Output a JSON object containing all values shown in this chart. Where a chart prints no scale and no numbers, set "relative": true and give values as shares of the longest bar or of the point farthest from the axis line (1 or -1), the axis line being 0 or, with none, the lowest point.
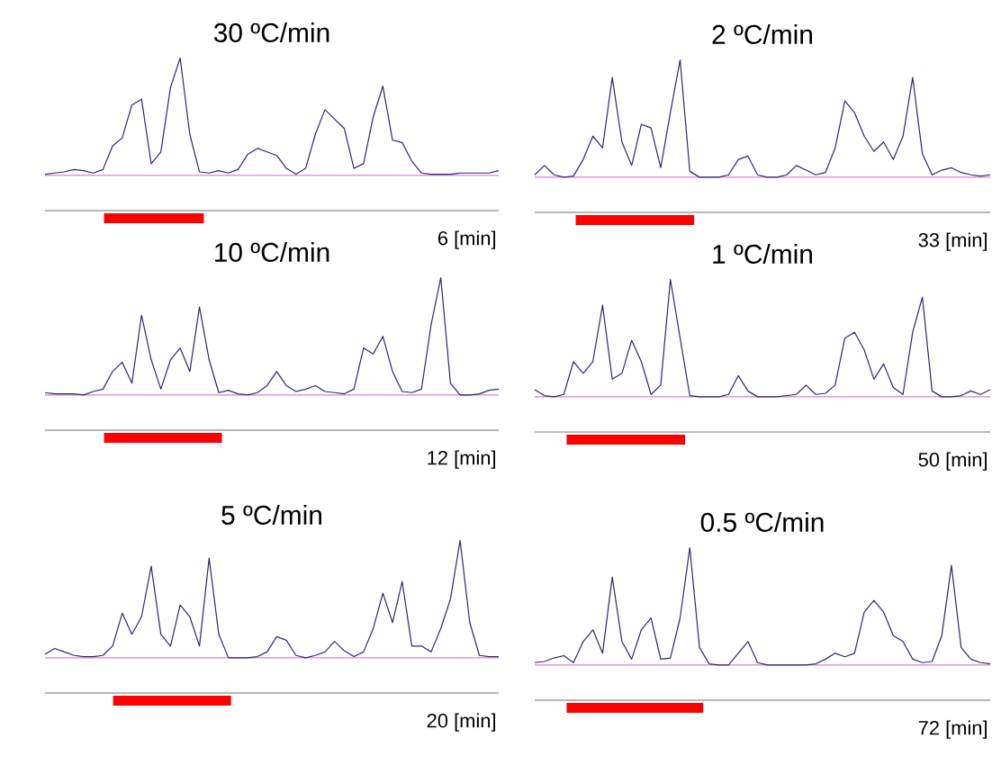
{
  "chart_data": [
    {
      "type": "line",
      "title": "30 ºC/min",
      "relative": true,
      "color": "#2a2a70",
      "categories": [
        null,
        null,
        null,
        null,
        null,
        null,
        null,
        null,
        null,
        null,
        null,
        null,
        null,
        null,
        null,
        null,
        null,
        null,
        null,
        null,
        null,
        null,
        null,
        null,
        null,
        null,
        null,
        null,
        null,
        null,
        null,
        null,
        null,
        null,
        null,
        null,
        null,
        null,
        null,
        null,
        null,
        null,
        null,
        null,
        null,
        null,
        null,
        null
      ],
      "values": [
        0.01,
        0.02,
        0.03,
        0.05,
        0.04,
        0.02,
        0.05,
        0.25,
        0.32,
        0.6,
        0.65,
        0.1,
        0.2,
        0.75,
        1,
        0.35,
        0.03,
        0.02,
        0.04,
        0.02,
        0.05,
        0.18,
        0.23,
        0.2,
        0.17,
        0.06,
        0.01,
        0.06,
        0.35,
        0.56,
        0.48,
        0.4,
        0.06,
        0.1,
        0.5,
        0.76,
        0.3,
        0.28,
        0.12,
        0.02,
        0.01,
        0.01,
        0.01,
        0.02,
        0.02,
        0.02,
        0.02,
        0.04
      ],
      "ref_lines": [
        {
          "axis": "y",
          "value": 0,
          "color": "#cc66cc"
        }
      ],
      "annotations": [
        "6 [min]"
      ]
    },
    {
      "type": "line",
      "title": "2 ºC/min",
      "relative": true,
      "color": "#2a2a70",
      "categories": [
        null,
        null,
        null,
        null,
        null,
        null,
        null,
        null,
        null,
        null,
        null,
        null,
        null,
        null,
        null,
        null,
        null,
        null,
        null,
        null,
        null,
        null,
        null,
        null,
        null,
        null,
        null,
        null,
        null,
        null,
        null,
        null,
        null,
        null,
        null,
        null,
        null,
        null,
        null,
        null,
        null,
        null,
        null,
        null,
        null,
        null,
        null,
        null
      ],
      "values": [
        0.02,
        0.1,
        0.02,
        0,
        0.01,
        0.15,
        0.35,
        0.25,
        0.85,
        0.3,
        0.1,
        0.45,
        0.42,
        0.08,
        0.55,
        1,
        0.05,
        0,
        0,
        0,
        0.02,
        0.15,
        0.18,
        0.02,
        0,
        0,
        0.02,
        0.1,
        0.06,
        0.02,
        0.04,
        0.25,
        0.65,
        0.55,
        0.35,
        0.22,
        0.3,
        0.15,
        0.35,
        0.85,
        0.2,
        0.02,
        0.06,
        0.08,
        0.04,
        0.02,
        0.01,
        0.02
      ],
      "ref_lines": [
        {
          "axis": "y",
          "value": 0,
          "color": "#cc66cc"
        }
      ],
      "annotations": [
        "33 [min]"
      ]
    },
    {
      "type": "line",
      "title": "10 ºC/min",
      "relative": true,
      "color": "#2a2a70",
      "categories": [
        null,
        null,
        null,
        null,
        null,
        null,
        null,
        null,
        null,
        null,
        null,
        null,
        null,
        null,
        null,
        null,
        null,
        null,
        null,
        null,
        null,
        null,
        null,
        null,
        null,
        null,
        null,
        null,
        null,
        null,
        null,
        null,
        null,
        null,
        null,
        null,
        null,
        null,
        null,
        null,
        null,
        null,
        null,
        null,
        null,
        null,
        null,
        null
      ],
      "values": [
        0.02,
        0.01,
        0.01,
        0.01,
        0,
        0.03,
        0.05,
        0.2,
        0.28,
        0.1,
        0.68,
        0.3,
        0.05,
        0.3,
        0.4,
        0.2,
        0.75,
        0.3,
        0.02,
        0.04,
        0.01,
        0,
        0.02,
        0.08,
        0.2,
        0.08,
        0.03,
        0.05,
        0.08,
        0.03,
        0.02,
        0.01,
        0.05,
        0.4,
        0.35,
        0.5,
        0.2,
        0.03,
        0.02,
        0.05,
        0.6,
        1,
        0.1,
        0,
        0,
        0.01,
        0.04,
        0.05
      ],
      "ref_lines": [
        {
          "axis": "y",
          "value": 0,
          "color": "#cc66cc"
        }
      ],
      "annotations": [
        "12 [min]"
      ]
    },
    {
      "type": "line",
      "title": "1 ºC/min",
      "relative": true,
      "color": "#2a2a70",
      "categories": [
        null,
        null,
        null,
        null,
        null,
        null,
        null,
        null,
        null,
        null,
        null,
        null,
        null,
        null,
        null,
        null,
        null,
        null,
        null,
        null,
        null,
        null,
        null,
        null,
        null,
        null,
        null,
        null,
        null,
        null,
        null,
        null,
        null,
        null,
        null,
        null,
        null,
        null,
        null,
        null,
        null,
        null,
        null,
        null,
        null,
        null,
        null,
        null
      ],
      "values": [
        0.06,
        0.01,
        0,
        0.02,
        0.3,
        0.2,
        0.3,
        0.78,
        0.15,
        0.2,
        0.48,
        0.3,
        0.02,
        0.1,
        1,
        0.5,
        0.01,
        0,
        0,
        0,
        0.02,
        0.18,
        0.05,
        0,
        0,
        0,
        0.01,
        0.02,
        0.1,
        0.02,
        0.03,
        0.1,
        0.5,
        0.55,
        0.4,
        0.15,
        0.28,
        0.08,
        0.02,
        0.55,
        0.85,
        0.05,
        0,
        0,
        0.01,
        0.05,
        0.02,
        0.06
      ],
      "ref_lines": [
        {
          "axis": "y",
          "value": 0,
          "color": "#cc66cc"
        }
      ],
      "annotations": [
        "50 [min]"
      ]
    },
    {
      "type": "line",
      "title": "5 ºC/min",
      "relative": true,
      "color": "#2a2a70",
      "categories": [
        null,
        null,
        null,
        null,
        null,
        null,
        null,
        null,
        null,
        null,
        null,
        null,
        null,
        null,
        null,
        null,
        null,
        null,
        null,
        null,
        null,
        null,
        null,
        null,
        null,
        null,
        null,
        null,
        null,
        null,
        null,
        null,
        null,
        null,
        null,
        null,
        null,
        null,
        null,
        null,
        null,
        null,
        null,
        null,
        null,
        null,
        null,
        null
      ],
      "values": [
        0.03,
        0.08,
        0.05,
        0.02,
        0.01,
        0.01,
        0.02,
        0.1,
        0.38,
        0.2,
        0.35,
        0.78,
        0.2,
        0.1,
        0.45,
        0.35,
        0.1,
        0.85,
        0.2,
        0,
        0,
        0,
        0.01,
        0.05,
        0.18,
        0.15,
        0.02,
        0,
        0.02,
        0.05,
        0.14,
        0.06,
        0.01,
        0.05,
        0.25,
        0.55,
        0.3,
        0.65,
        0.1,
        0.1,
        0.05,
        0.25,
        0.5,
        1,
        0.3,
        0.02,
        0.01,
        0.01
      ],
      "ref_lines": [
        {
          "axis": "y",
          "value": 0,
          "color": "#cc66cc"
        }
      ],
      "annotations": [
        "20 [min]"
      ]
    },
    {
      "type": "line",
      "title": "0.5 ºC/min",
      "relative": true,
      "color": "#2a2a70",
      "categories": [
        null,
        null,
        null,
        null,
        null,
        null,
        null,
        null,
        null,
        null,
        null,
        null,
        null,
        null,
        null,
        null,
        null,
        null,
        null,
        null,
        null,
        null,
        null,
        null,
        null,
        null,
        null,
        null,
        null,
        null,
        null,
        null,
        null,
        null,
        null,
        null,
        null,
        null,
        null,
        null,
        null,
        null,
        null,
        null,
        null,
        null,
        null,
        null
      ],
      "values": [
        0.02,
        0.03,
        0.06,
        0.08,
        0.02,
        0.2,
        0.3,
        0.1,
        0.75,
        0.2,
        0.05,
        0.3,
        0.4,
        0.05,
        0.06,
        0.4,
        1,
        0.15,
        0.01,
        0,
        0,
        0.1,
        0.2,
        0.02,
        0,
        0,
        0,
        0,
        0,
        0.01,
        0.05,
        0.1,
        0.07,
        0.1,
        0.45,
        0.55,
        0.45,
        0.25,
        0.2,
        0.05,
        0.02,
        0.03,
        0.25,
        0.85,
        0.15,
        0.05,
        0.02,
        0.01
      ],
      "ref_lines": [
        {
          "axis": "y",
          "value": 0,
          "color": "#cc66cc"
        }
      ],
      "annotations": [
        "72 [min]"
      ]
    }
  ]
}
